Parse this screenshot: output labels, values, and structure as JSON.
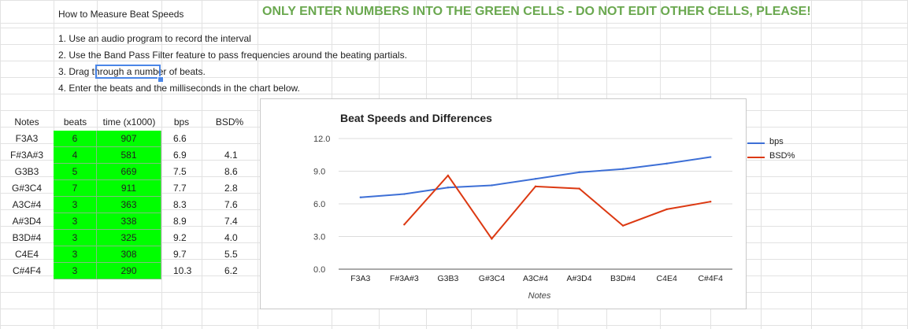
{
  "sheet": {
    "title_cell": "How to Measure Beat Speeds",
    "warning": "ONLY ENTER NUMBERS INTO THE GREEN CELLS - DO NOT EDIT OTHER CELLS, PLEASE!",
    "instructions": [
      "1. Use an audio program to record the interval",
      "2. Use the Band Pass Filter feature to pass frequencies around the beating partials.",
      "3. Drag through a number of beats.",
      "4. Enter the beats and the milliseconds in the chart below."
    ]
  },
  "table": {
    "headers": [
      "Notes",
      "beats",
      "time (x1000)",
      "bps",
      "BSD%"
    ],
    "rows": [
      {
        "note": "F3A3",
        "beats": "6",
        "time": "907",
        "bps": "6.6",
        "bsd": ""
      },
      {
        "note": "F#3A#3",
        "beats": "4",
        "time": "581",
        "bps": "6.9",
        "bsd": "4.1"
      },
      {
        "note": "G3B3",
        "beats": "5",
        "time": "669",
        "bps": "7.5",
        "bsd": "8.6"
      },
      {
        "note": "G#3C4",
        "beats": "7",
        "time": "911",
        "bps": "7.7",
        "bsd": "2.8"
      },
      {
        "note": "A3C#4",
        "beats": "3",
        "time": "363",
        "bps": "8.3",
        "bsd": "7.6"
      },
      {
        "note": "A#3D4",
        "beats": "3",
        "time": "338",
        "bps": "8.9",
        "bsd": "7.4"
      },
      {
        "note": "B3D#4",
        "beats": "3",
        "time": "325",
        "bps": "9.2",
        "bsd": "4.0"
      },
      {
        "note": "C4E4",
        "beats": "3",
        "time": "308",
        "bps": "9.7",
        "bsd": "5.5"
      },
      {
        "note": "C#4F4",
        "beats": "3",
        "time": "290",
        "bps": "10.3",
        "bsd": "6.2"
      }
    ],
    "input_color": "#00ff00"
  },
  "chart_data": {
    "type": "line",
    "title": "Beat Speeds and Differences",
    "xlabel": "Notes",
    "ylabel": "",
    "categories": [
      "F3A3",
      "F#3A#3",
      "G3B3",
      "G#3C4",
      "A3C#4",
      "A#3D4",
      "B3D#4",
      "C4E4",
      "C#4F4"
    ],
    "series": [
      {
        "name": "bps",
        "color": "#3d6fd6",
        "values": [
          6.6,
          6.9,
          7.5,
          7.7,
          8.3,
          8.9,
          9.2,
          9.7,
          10.3
        ]
      },
      {
        "name": "BSD%",
        "color": "#dc3912",
        "values": [
          null,
          4.1,
          8.6,
          2.8,
          7.6,
          7.4,
          4.0,
          5.5,
          6.2
        ]
      }
    ],
    "ylim": [
      0,
      12
    ],
    "yticks": [
      "0.0",
      "3.0",
      "6.0",
      "9.0",
      "12.0"
    ],
    "legend": "right",
    "grid": true
  }
}
